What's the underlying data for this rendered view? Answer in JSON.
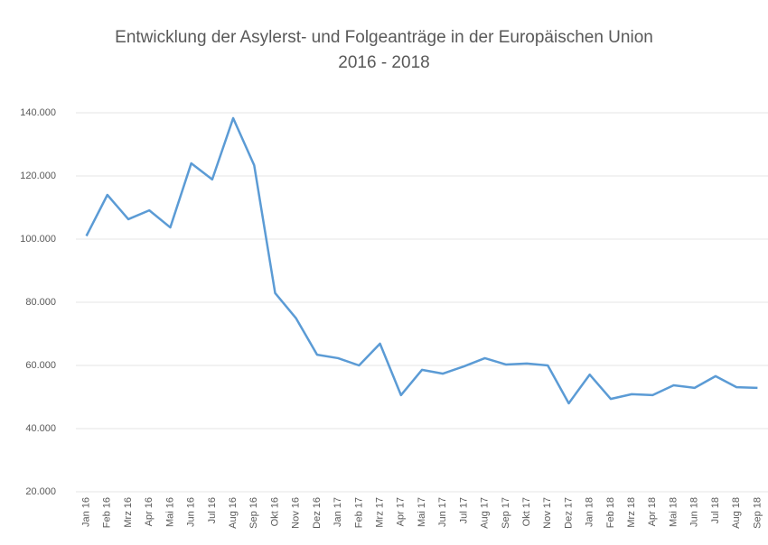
{
  "chart_data": {
    "type": "line",
    "title": "Entwicklung der Asylerst- und Folgeanträge in der Europäischen Union",
    "subtitle": "2016 - 2018",
    "categories": [
      "Jan 16",
      "Feb 16",
      "Mrz 16",
      "Apr 16",
      "Mai 16",
      "Jun 16",
      "Jul 16",
      "Aug 16",
      "Sep 16",
      "Okt 16",
      "Nov 16",
      "Dez 16",
      "Jan 17",
      "Feb 17",
      "Mrz 17",
      "Apr 17",
      "Mai 17",
      "Jun 17",
      "Jul 17",
      "Aug 17",
      "Sep 17",
      "Okt 17",
      "Nov 17",
      "Dez 17",
      "Jan 18",
      "Feb 18",
      "Mrz 18",
      "Apr 18",
      "Mai 18",
      "Jun 18",
      "Jul 18",
      "Aug 18",
      "Sep 18"
    ],
    "values": [
      101000,
      114000,
      106300,
      109100,
      103700,
      124000,
      118900,
      138300,
      123400,
      82900,
      74900,
      63400,
      62300,
      60000,
      66900,
      50600,
      58600,
      57400,
      59700,
      62300,
      60300,
      60600,
      60000,
      48000,
      57100,
      49400,
      50900,
      50600,
      53700,
      52900,
      56600,
      53100,
      52900
    ],
    "color": "#5b9bd5",
    "ylim": [
      20000,
      140000
    ],
    "yticks": [
      {
        "value": 20000,
        "label": "20.000"
      },
      {
        "value": 40000,
        "label": "40.000"
      },
      {
        "value": 60000,
        "label": "60.000"
      },
      {
        "value": 80000,
        "label": "80.000"
      },
      {
        "value": 100000,
        "label": "100.000"
      },
      {
        "value": 120000,
        "label": "120.000"
      },
      {
        "value": 140000,
        "label": "140.000"
      }
    ],
    "grid": true
  }
}
